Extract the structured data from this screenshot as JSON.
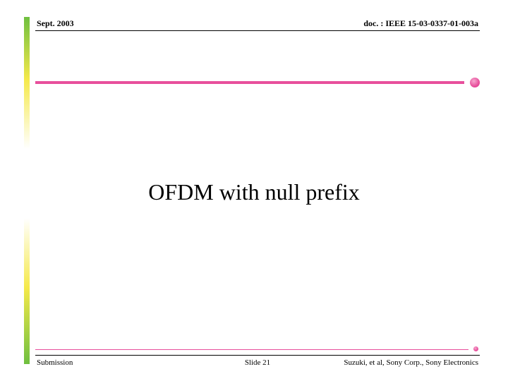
{
  "header": {
    "left": "Sept. 2003",
    "right": "doc. : IEEE 15-03-0337-01-003a"
  },
  "title": "OFDM with null prefix",
  "footer": {
    "left": "Submission",
    "center": "Slide 21",
    "right": "Suzuki, et al, Sony Corp., Sony Electronics"
  },
  "colors": {
    "accent": "#e84f9c",
    "bar_top": "#6fbf3f",
    "bar_mid": "#f5e94a",
    "background": "#ffffff",
    "text": "#000000"
  }
}
